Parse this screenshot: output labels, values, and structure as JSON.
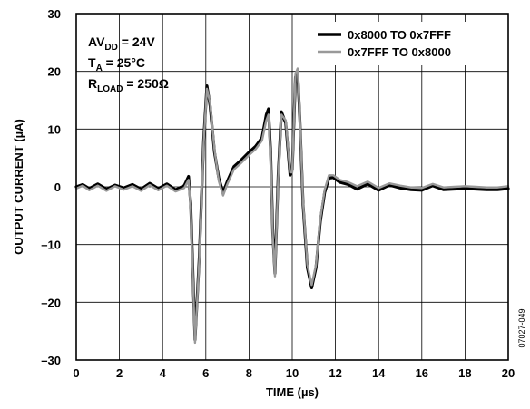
{
  "chart_data": {
    "type": "line",
    "xlabel": "TIME (µs)",
    "ylabel": "OUTPUT CURRENT (µA)",
    "xlim": [
      0,
      20
    ],
    "ylim": [
      -30,
      30
    ],
    "x_ticks": [
      "0",
      "2",
      "4",
      "6",
      "8",
      "10",
      "12",
      "14",
      "16",
      "18",
      "20"
    ],
    "y_ticks": [
      "30",
      "20",
      "10",
      "0",
      "–10",
      "–20",
      "–30"
    ],
    "grid": true,
    "legend_position": "top-right",
    "annotations": {
      "line1_main": "AV",
      "line1_sub": "DD",
      "line1_rest": " = 24V",
      "line2_main": "T",
      "line2_sub": "A",
      "line2_rest": " = 25°C",
      "line3_main": "R",
      "line3_sub": "LOAD",
      "line3_rest": " = 250Ω"
    },
    "figure_id": "07027-049",
    "series": [
      {
        "name": "0x8000 TO 0x7FFF",
        "color": "#000000",
        "x": [
          0,
          0.3,
          0.6,
          1.0,
          1.4,
          1.8,
          2.2,
          2.6,
          3.0,
          3.4,
          3.8,
          4.2,
          4.6,
          5.0,
          5.2,
          5.3,
          5.5,
          5.7,
          5.9,
          6.05,
          6.2,
          6.4,
          6.6,
          6.8,
          7.0,
          7.3,
          7.6,
          8.0,
          8.3,
          8.6,
          8.8,
          8.9,
          9.0,
          9.1,
          9.2,
          9.35,
          9.5,
          9.7,
          9.9,
          10.0,
          10.15,
          10.25,
          10.35,
          10.5,
          10.7,
          10.9,
          11.1,
          11.3,
          11.5,
          11.7,
          11.9,
          12.2,
          12.6,
          13.0,
          13.5,
          14.0,
          14.5,
          15.0,
          15.5,
          16.0,
          16.5,
          17.0,
          17.5,
          18.0,
          18.5,
          19.0,
          19.5,
          20.0
        ],
        "values": [
          0.0,
          0.4,
          -0.3,
          0.5,
          -0.4,
          0.3,
          -0.2,
          0.4,
          -0.4,
          0.6,
          -0.3,
          0.5,
          -0.5,
          0.2,
          1.8,
          -3.0,
          -26.5,
          -12.0,
          8.0,
          17.5,
          14.0,
          6.0,
          1.5,
          -1.0,
          1.0,
          3.5,
          4.5,
          6.0,
          7.0,
          8.5,
          12.5,
          13.5,
          6.0,
          -8.0,
          -15.0,
          2.0,
          13.0,
          11.0,
          2.0,
          3.0,
          19.0,
          20.0,
          12.0,
          -3.0,
          -14.0,
          -17.5,
          -14.0,
          -6.0,
          -1.0,
          1.5,
          1.6,
          0.8,
          0.4,
          -0.4,
          0.5,
          -0.6,
          0.3,
          -0.2,
          -0.5,
          -0.6,
          0.2,
          -0.5,
          -0.4,
          -0.3,
          -0.4,
          -0.5,
          -0.5,
          -0.3
        ]
      },
      {
        "name": "0x7FFF TO 0x8000",
        "color": "#999999",
        "x": [
          0,
          0.3,
          0.6,
          1.0,
          1.4,
          1.8,
          2.2,
          2.6,
          3.0,
          3.4,
          3.8,
          4.2,
          4.6,
          5.0,
          5.2,
          5.3,
          5.5,
          5.7,
          5.9,
          6.05,
          6.2,
          6.4,
          6.6,
          6.8,
          7.0,
          7.3,
          7.6,
          8.0,
          8.3,
          8.6,
          8.8,
          8.9,
          9.0,
          9.1,
          9.2,
          9.35,
          9.5,
          9.7,
          9.9,
          10.0,
          10.15,
          10.25,
          10.35,
          10.5,
          10.7,
          10.9,
          11.1,
          11.3,
          11.5,
          11.7,
          11.9,
          12.2,
          12.6,
          13.0,
          13.5,
          14.0,
          14.5,
          15.0,
          15.5,
          16.0,
          16.5,
          17.0,
          17.5,
          18.0,
          18.5,
          19.0,
          19.5,
          20.0
        ],
        "values": [
          -0.3,
          0.2,
          -0.6,
          0.2,
          -0.7,
          0.1,
          -0.5,
          0.1,
          -0.7,
          0.3,
          -0.6,
          0.2,
          -0.8,
          -0.2,
          1.2,
          -3.5,
          -27.0,
          -12.5,
          7.5,
          17.0,
          14.5,
          6.5,
          1.0,
          -1.5,
          0.5,
          3.0,
          4.0,
          5.5,
          6.5,
          8.0,
          11.5,
          12.5,
          5.5,
          -8.5,
          -15.5,
          1.5,
          12.5,
          11.5,
          2.5,
          2.5,
          19.5,
          20.5,
          12.5,
          -2.5,
          -13.5,
          -17.0,
          -13.5,
          -5.5,
          -0.5,
          2.0,
          2.0,
          1.2,
          0.8,
          0.1,
          0.9,
          -0.2,
          0.6,
          0.2,
          -0.1,
          -0.2,
          0.5,
          -0.1,
          0.0,
          0.1,
          0.0,
          -0.1,
          -0.1,
          0.1
        ]
      }
    ]
  }
}
